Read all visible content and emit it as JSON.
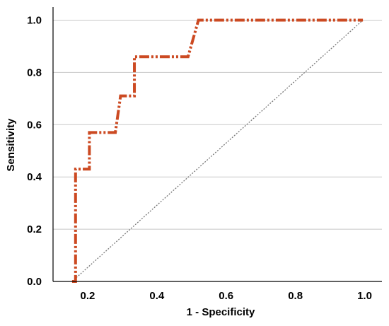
{
  "chart_data": {
    "type": "line",
    "title": "",
    "xlabel": "1 - Specificity",
    "ylabel": "Sensitivity",
    "xlim": [
      0.1,
      1.05
    ],
    "ylim": [
      0.0,
      1.05
    ],
    "x_ticks": [
      "0.2",
      "0.4",
      "0.6",
      "0.8",
      "1.0"
    ],
    "y_ticks": [
      "0.0",
      "0.2",
      "0.4",
      "0.6",
      "0.8",
      "1.0"
    ],
    "grid": "horizontal",
    "legend": "none",
    "series": [
      {
        "style": "dash-dot-dot",
        "color": "#CC4A22",
        "x": [
          0.155,
          0.165,
          0.165,
          0.195,
          0.205,
          0.205,
          0.28,
          0.295,
          0.295,
          0.32,
          0.335,
          0.335,
          0.49,
          0.52,
          0.995
        ],
        "y": [
          0.0,
          0.0,
          0.43,
          0.43,
          0.43,
          0.57,
          0.57,
          0.71,
          0.71,
          0.71,
          0.71,
          0.86,
          0.86,
          1.0,
          1.0
        ]
      },
      {
        "style": "dotted",
        "color": "#777777",
        "x": [
          0.155,
          0.995
        ],
        "y": [
          0.0,
          1.0
        ]
      }
    ]
  }
}
